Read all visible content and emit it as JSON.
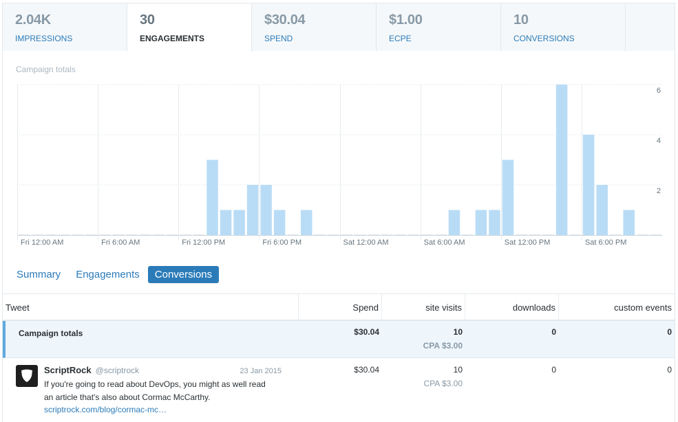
{
  "metrics": [
    {
      "value": "2.04K",
      "label": "IMPRESSIONS"
    },
    {
      "value": "30",
      "label": "ENGAGEMENTS"
    },
    {
      "value": "$30.04",
      "label": "SPEND"
    },
    {
      "value": "$1.00",
      "label": "ECPE"
    },
    {
      "value": "10",
      "label": "CONVERSIONS"
    }
  ],
  "chart_title": "Campaign totals",
  "chart_data": {
    "type": "bar",
    "title": "Campaign totals",
    "xlabel": "",
    "ylabel": "",
    "ylim": [
      0,
      6
    ],
    "yticks": [
      2,
      4,
      6
    ],
    "interval_hours": 1,
    "x_tick_labels": [
      "Fri 12:00 AM",
      "Fri 6:00 AM",
      "Fri 12:00 PM",
      "Fri 6:00 PM",
      "Sat 12:00 AM",
      "Sat 6:00 AM",
      "Sat 12:00 PM",
      "Sat 6:00 PM"
    ],
    "values": [
      0,
      0,
      0,
      0,
      0,
      0,
      0,
      0,
      0,
      0,
      0,
      0,
      0,
      0,
      3,
      1,
      1,
      2,
      2,
      1,
      0,
      1,
      0,
      0,
      0,
      0,
      0,
      0,
      0,
      0,
      0,
      0,
      1,
      0,
      1,
      1,
      3,
      0,
      0,
      0,
      6,
      0,
      4,
      2,
      0,
      1,
      0,
      0
    ],
    "series_colors": {
      "bar": "#b9dcf6"
    }
  },
  "subtabs": [
    "Summary",
    "Engagements",
    "Conversions"
  ],
  "table": {
    "headers": {
      "tweet": "Tweet",
      "spend": "Spend",
      "site_visits": "site visits",
      "downloads": "downloads",
      "custom_events": "custom events"
    },
    "totals": {
      "label": "Campaign totals",
      "spend": "$30.04",
      "site_visits": "10",
      "cpa": "CPA $3.00",
      "downloads": "0",
      "custom_events": "0"
    },
    "rows": [
      {
        "author": "ScriptRock",
        "handle": "@scriptrock",
        "date": "23 Jan 2015",
        "text_line1": "If you're going to read about DevOps, you might as well read",
        "text_line2": "an article that's also about Cormac McCarthy.",
        "link": "scriptrock.com/blog/cormac-mc…",
        "spend": "$30.04",
        "site_visits": "10",
        "cpa": "CPA $3.00",
        "downloads": "0",
        "custom_events": "0"
      }
    ]
  },
  "colors": {
    "accent": "#2b7bb9",
    "bar": "#b9dcf6",
    "highlight_row": "#eef5fb",
    "highlight_border": "#5ea9dd"
  }
}
